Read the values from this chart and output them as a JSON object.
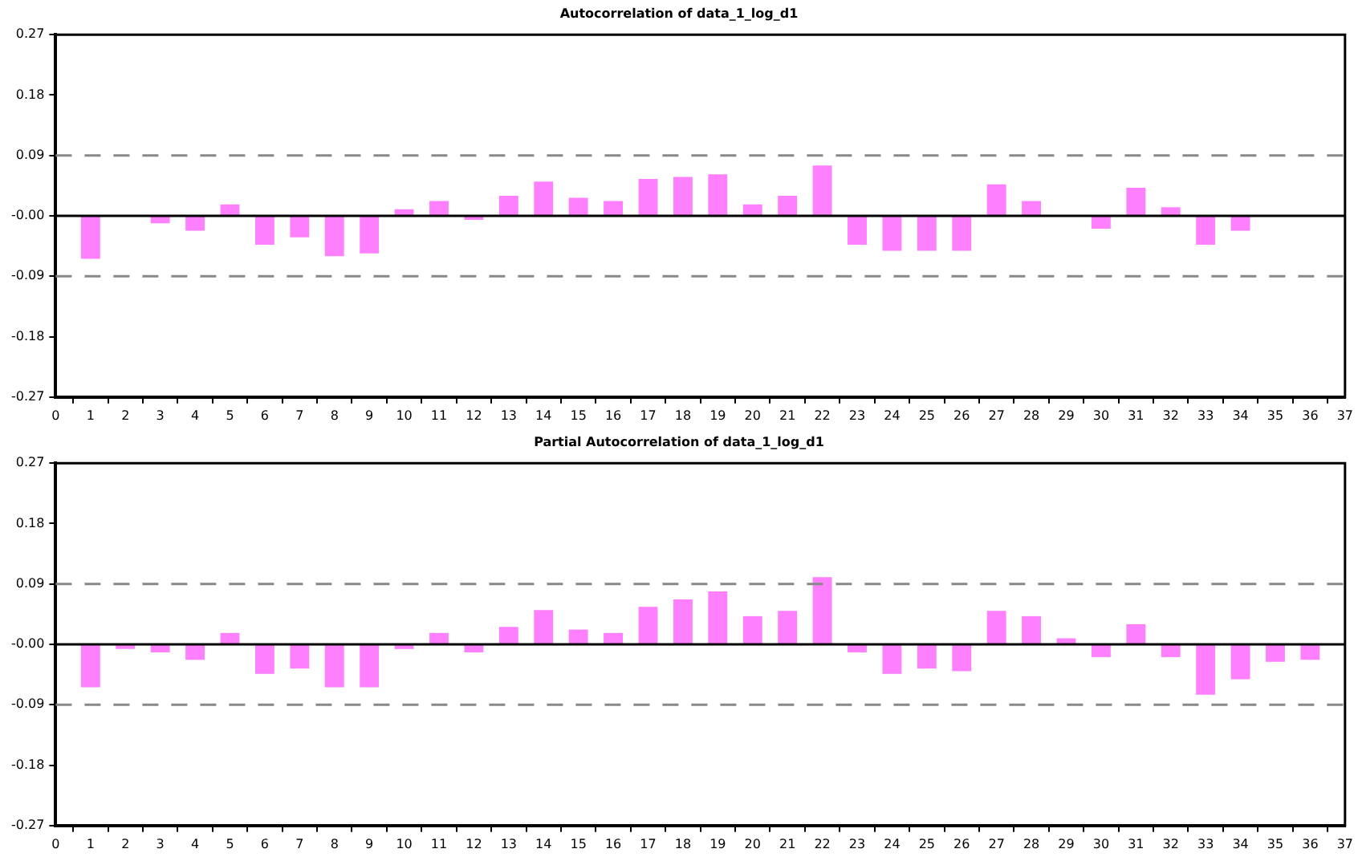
{
  "chart_data": [
    {
      "type": "bar",
      "title": "Autocorrelation of data_1_log_d1",
      "color": "#ff80ff",
      "grid": false,
      "legend": false,
      "x": [
        1,
        2,
        3,
        4,
        5,
        6,
        7,
        8,
        9,
        10,
        11,
        12,
        13,
        14,
        15,
        16,
        17,
        18,
        19,
        20,
        21,
        22,
        23,
        24,
        25,
        26,
        27,
        28,
        29,
        30,
        31,
        32,
        33,
        34,
        35,
        36
      ],
      "values": [
        -0.064,
        0,
        -0.011,
        -0.022,
        0.017,
        -0.043,
        -0.032,
        -0.06,
        -0.056,
        0.01,
        0.022,
        -0.006,
        0.03,
        0.051,
        0.027,
        0.022,
        0.055,
        0.058,
        0.062,
        0.017,
        0.03,
        0.075,
        -0.043,
        -0.052,
        -0.052,
        -0.052,
        0.047,
        0.022,
        0,
        -0.019,
        0.042,
        0.013,
        -0.043,
        -0.022,
        0,
        0
      ],
      "xlim": [
        0,
        37
      ],
      "xticks": [
        0,
        1,
        2,
        3,
        4,
        5,
        6,
        7,
        8,
        9,
        10,
        11,
        12,
        13,
        14,
        15,
        16,
        17,
        18,
        19,
        20,
        21,
        22,
        23,
        24,
        25,
        26,
        27,
        28,
        29,
        30,
        31,
        32,
        33,
        34,
        35,
        36,
        37
      ],
      "ylim": [
        -0.27,
        0.27
      ],
      "yticks": [
        -0.27,
        -0.18,
        -0.09,
        {
          "value": 0,
          "label": "-0.00"
        },
        0.09,
        0.18,
        0.27
      ],
      "ref_lines": [
        {
          "axis": "y",
          "value": 0.09,
          "color": "#888888",
          "line_style": "dashed"
        },
        {
          "axis": "y",
          "value": -0.09,
          "color": "#888888",
          "line_style": "dashed"
        },
        {
          "axis": "y",
          "value": 0,
          "color": "#000000",
          "line_style": "solid"
        }
      ]
    },
    {
      "type": "bar",
      "title": "Partial Autocorrelation of data_1_log_d1",
      "color": "#ff80ff",
      "grid": false,
      "legend": false,
      "x": [
        1,
        2,
        3,
        4,
        5,
        6,
        7,
        8,
        9,
        10,
        11,
        12,
        13,
        14,
        15,
        16,
        17,
        18,
        19,
        20,
        21,
        22,
        23,
        24,
        25,
        26,
        27,
        28,
        29,
        30,
        31,
        32,
        33,
        34,
        35,
        36
      ],
      "values": [
        -0.064,
        -0.007,
        -0.012,
        -0.023,
        0.017,
        -0.044,
        -0.036,
        -0.064,
        -0.064,
        -0.007,
        0.017,
        -0.012,
        0.026,
        0.051,
        0.022,
        0.017,
        0.056,
        0.067,
        0.079,
        0.042,
        0.05,
        0.1,
        -0.012,
        -0.044,
        -0.036,
        -0.04,
        0.05,
        0.042,
        0.009,
        -0.019,
        0.03,
        -0.019,
        -0.075,
        -0.052,
        -0.026,
        -0.023
      ],
      "xlim": [
        0,
        37
      ],
      "xticks": [
        0,
        1,
        2,
        3,
        4,
        5,
        6,
        7,
        8,
        9,
        10,
        11,
        12,
        13,
        14,
        15,
        16,
        17,
        18,
        19,
        20,
        21,
        22,
        23,
        24,
        25,
        26,
        27,
        28,
        29,
        30,
        31,
        32,
        33,
        34,
        35,
        36,
        37
      ],
      "ylim": [
        -0.27,
        0.27
      ],
      "yticks": [
        -0.27,
        -0.18,
        -0.09,
        {
          "value": 0,
          "label": "-0.00"
        },
        0.09,
        0.18,
        0.27
      ],
      "ref_lines": [
        {
          "axis": "y",
          "value": 0.09,
          "color": "#888888",
          "line_style": "dashed"
        },
        {
          "axis": "y",
          "value": -0.09,
          "color": "#888888",
          "line_style": "dashed"
        },
        {
          "axis": "y",
          "value": 0,
          "color": "#000000",
          "line_style": "solid"
        }
      ]
    }
  ]
}
